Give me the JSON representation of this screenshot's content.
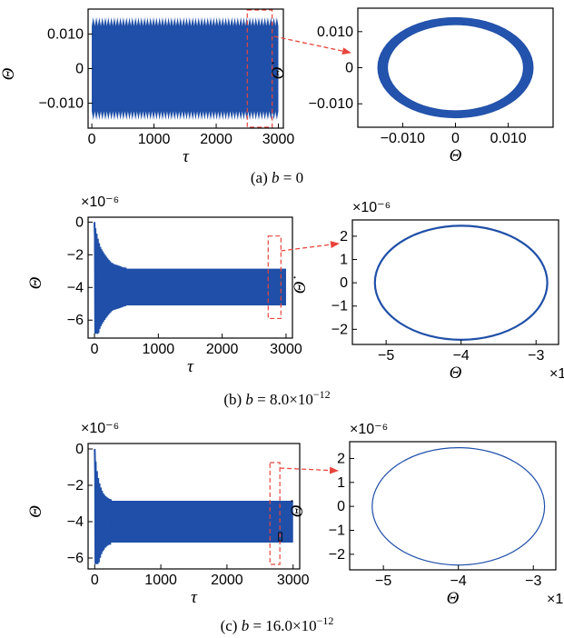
{
  "colors": {
    "series": "#1f4fa8",
    "annotation": "#e8453c",
    "frame": "#000000"
  },
  "chart_data": [
    {
      "id": "a-time",
      "type": "line",
      "xlabel": "τ",
      "ylabel": "Θ",
      "xlim": [
        -60,
        3080
      ],
      "ylim": [
        -0.0172,
        0.0172
      ],
      "xticks": [
        0,
        1000,
        2000,
        3000
      ],
      "xtick_labels": [
        "0",
        "1000",
        "2000",
        "3000"
      ],
      "yticks": [
        -0.01,
        0,
        0.01
      ],
      "ytick_labels": [
        "−0.010",
        "0",
        "0.010"
      ],
      "band": {
        "x_start": 0,
        "x_end": 3000,
        "upper": 0.0148,
        "lower": -0.0148,
        "inner_upper": 0.0123,
        "inner_lower": -0.0123,
        "cycles": 62
      },
      "zoom_box": {
        "x0": 2500,
        "x1": 2900,
        "y0": -0.0172,
        "y1": 0.0172
      }
    },
    {
      "id": "a-phase",
      "type": "line",
      "xlabel": "Θ",
      "ylabel": "Θ̇",
      "xlim": [
        -0.0185,
        0.0185
      ],
      "ylim": [
        -0.0165,
        0.0165
      ],
      "xticks": [
        -0.01,
        0,
        0.01
      ],
      "xtick_labels": [
        "−0.010",
        "0",
        "0.010"
      ],
      "yticks": [
        -0.01,
        0,
        0.01
      ],
      "ytick_labels": [
        "−0.010",
        "0",
        "0.010"
      ],
      "ellipse": {
        "center": [
          0,
          0
        ],
        "rx_outer": 0.0148,
        "rx_inner": 0.0128,
        "ry_outer": 0.014,
        "ry_inner": 0.0118
      }
    },
    {
      "id": "b-time",
      "type": "line",
      "xlabel": "τ",
      "ylabel": "Θ",
      "exponent_label": "×10⁻⁶",
      "xlim": [
        -100,
        3100
      ],
      "ylim": [
        -7.1,
        0.3
      ],
      "xticks": [
        0,
        1000,
        2000,
        3000
      ],
      "xtick_labels": [
        "0",
        "1000",
        "2000",
        "3000"
      ],
      "yticks": [
        0,
        -2,
        -4,
        -6
      ],
      "ytick_labels": [
        "0",
        "−2",
        "−4",
        "−6"
      ],
      "transient": {
        "start": 0,
        "start_upper": 0.0,
        "start_lower": -6.8,
        "settle_tau": 500
      },
      "band": {
        "x_end": 3000,
        "upper": -2.85,
        "lower": -5.1
      },
      "zoom_box": {
        "x0": 2720,
        "x1": 2920,
        "y0": -5.9,
        "y1": -0.85
      }
    },
    {
      "id": "b-phase",
      "type": "line",
      "xlabel": "Θ",
      "ylabel": "Θ̇",
      "exponent_label": "×10⁻⁶",
      "xlim": [
        -5.45,
        -2.7
      ],
      "ylim": [
        -2.65,
        2.7
      ],
      "xticks": [
        -5,
        -4,
        -3
      ],
      "xtick_labels": [
        "−5",
        "−4",
        "−3"
      ],
      "yticks": [
        2,
        1,
        0,
        -1,
        -2
      ],
      "ytick_labels": [
        "2",
        "1",
        "0",
        "−1",
        "−2"
      ],
      "ellipse": {
        "center": [
          -4.0,
          0
        ],
        "rx": 1.15,
        "ry": 2.45
      }
    },
    {
      "id": "c-time",
      "type": "line",
      "xlabel": "τ",
      "ylabel": "Θ",
      "exponent_label": "×10⁻⁶",
      "xlim": [
        -100,
        3100
      ],
      "ylim": [
        -6.6,
        0.3
      ],
      "xticks": [
        0,
        1000,
        2000,
        3000
      ],
      "xtick_labels": [
        "0",
        "1000",
        "2000",
        "3000"
      ],
      "yticks": [
        0,
        -2,
        -4,
        -6
      ],
      "ytick_labels": [
        "0",
        "−2",
        "−4",
        "−6"
      ],
      "transient": {
        "start": 0,
        "start_upper": 0.0,
        "start_lower": -6.3,
        "settle_tau": 250
      },
      "band": {
        "x_end": 3000,
        "upper": -2.85,
        "lower": -5.15
      },
      "zoom_box": {
        "x0": 2650,
        "x1": 2800,
        "y0": -6.35,
        "y1": -0.75
      },
      "inner_box": {
        "x0": 2780,
        "x1": 2830,
        "y0": -5.05,
        "y1": -4.6
      }
    },
    {
      "id": "c-phase",
      "type": "line",
      "xlabel": "Θ",
      "ylabel": "Θ̇",
      "exponent_label": "×10⁻⁶",
      "xlim": [
        -5.45,
        -2.7
      ],
      "ylim": [
        -2.65,
        2.7
      ],
      "xticks": [
        -5,
        -4,
        -3
      ],
      "xtick_labels": [
        "−5",
        "−4",
        "−3"
      ],
      "yticks": [
        2,
        1,
        0,
        -1,
        -2
      ],
      "ytick_labels": [
        "2",
        "1",
        "0",
        "−1",
        "−2"
      ],
      "ellipse": {
        "center": [
          -4.0,
          0
        ],
        "rx": 1.15,
        "ry": 2.45
      }
    }
  ],
  "captions": {
    "a": {
      "prefix": "(a) ",
      "var": "b",
      "rest": " = 0"
    },
    "b": {
      "prefix": "(b) ",
      "var": "b",
      "rest": " = 8.0×10",
      "sup": "−12"
    },
    "c": {
      "prefix": "(c) ",
      "var": "b",
      "rest": " = 16.0×10",
      "sup": "−12"
    }
  }
}
